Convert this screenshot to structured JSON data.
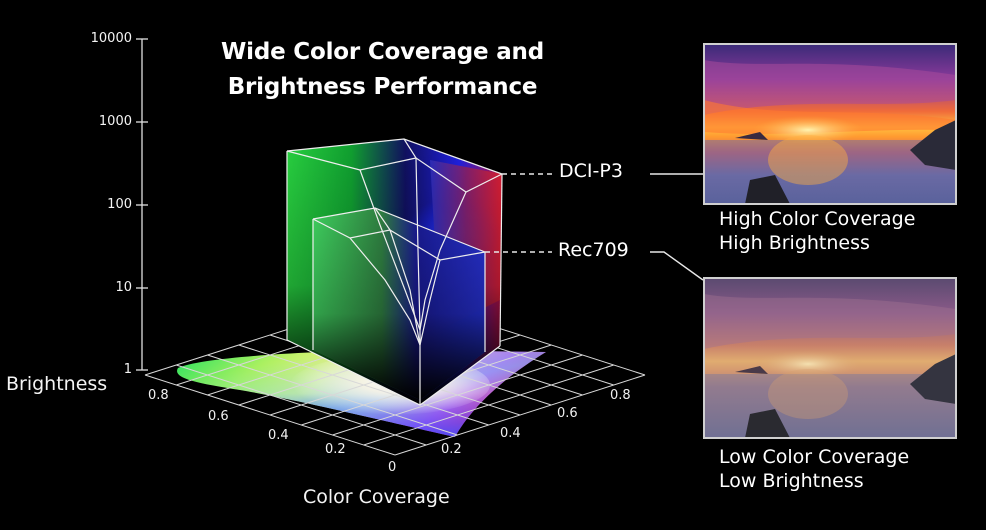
{
  "title": {
    "line1": "Wide Color Coverage and",
    "line2": "Brightness Performance"
  },
  "y_axis": {
    "label": "Brightness",
    "ticks": [
      "10000",
      "1000",
      "100",
      "10",
      "1"
    ]
  },
  "x_axis": {
    "label": "Color Coverage"
  },
  "floor_ticks_left": [
    "0.8",
    "0.6",
    "0.4",
    "0.2",
    "0"
  ],
  "floor_ticks_right": [
    "0.2",
    "0.4",
    "0.6",
    "0.8"
  ],
  "gamuts": {
    "dci": "DCI-P3",
    "rec": "Rec709"
  },
  "panels": {
    "high": {
      "line1": "High Color Coverage",
      "line2": "High Brightness"
    },
    "low": {
      "line1": "Low Color Coverage",
      "line2": "Low Brightness"
    }
  },
  "colors": {
    "background": "#000000",
    "text": "#ffffff",
    "outline": "#e8e8e8"
  }
}
